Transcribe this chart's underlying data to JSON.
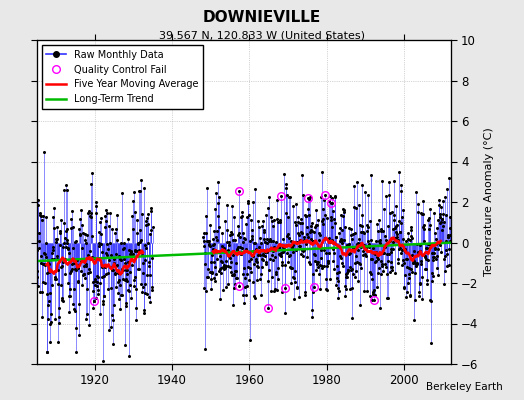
{
  "title": "DOWNIEVILLE",
  "subtitle": "39.567 N, 120.833 W (United States)",
  "ylabel": "Temperature Anomaly (°C)",
  "credit": "Berkeley Earth",
  "year_start": 1905,
  "year_end": 2012,
  "ylim": [
    -6,
    10
  ],
  "yticks": [
    -6,
    -4,
    -2,
    0,
    2,
    4,
    6,
    8,
    10
  ],
  "xticks": [
    1920,
    1940,
    1960,
    1980,
    2000
  ],
  "raw_color": "#3333ff",
  "moving_avg_color": "#ff0000",
  "trend_color": "#00bb00",
  "qc_fail_color": "#ff00ff",
  "background_color": "#e8e8e8",
  "plot_bg_color": "#ffffff",
  "trend_slope": 0.0085,
  "trend_intercept": -0.45,
  "gap_start": 1935,
  "gap_end": 1948,
  "seed": 12345
}
